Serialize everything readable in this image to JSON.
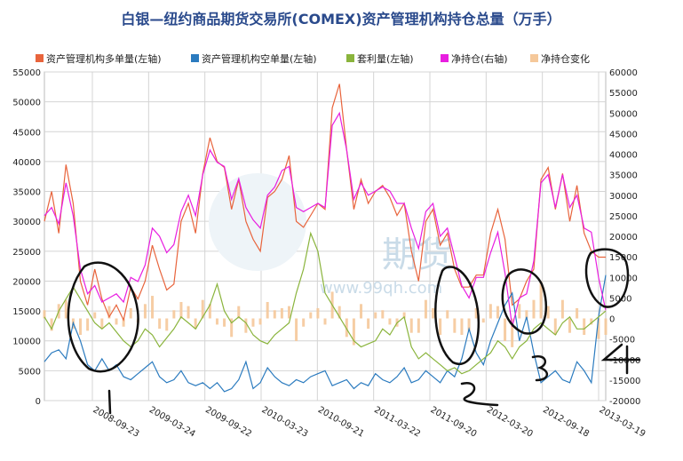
{
  "chart_data": {
    "type": "line",
    "title": "白银—纽约商品期货交易所(COMEX)资产管理机构持仓总量（万手）",
    "legend_position": "top",
    "grid": true,
    "left_axis": {
      "ylim": [
        0,
        55000
      ],
      "ticks": [
        "55000",
        "50000",
        "45000",
        "40000",
        "35000",
        "30000",
        "25000",
        "20000",
        "15000",
        "10000",
        "5000",
        "0"
      ]
    },
    "right_axis": {
      "ylim": [
        -20000,
        60000
      ],
      "ticks": [
        "60000",
        "55000",
        "50000",
        "45000",
        "40000",
        "35000",
        "30000",
        "25000",
        "20000",
        "15000",
        "10000",
        "5000",
        "0",
        "-5000",
        "-10000",
        "-15000",
        "-20000"
      ]
    },
    "x_ticks": [
      "2008-09-23",
      "2009-03-24",
      "2009-09-22",
      "2010-03-23",
      "2010-09-21",
      "2011-03-22",
      "2011-09-20",
      "2012-03-20",
      "2012-09-18",
      "2013-03-19"
    ],
    "series": [
      {
        "name": "资产管理机构多单量(左轴)",
        "axis": "left",
        "color": "#e8643c",
        "values": [
          30000,
          35000,
          28000,
          39500,
          33000,
          20000,
          16000,
          22000,
          17000,
          14000,
          16000,
          13500,
          19000,
          17000,
          20000,
          26000,
          22000,
          18500,
          19500,
          30000,
          33000,
          28000,
          38000,
          44000,
          40000,
          39000,
          32000,
          37000,
          30000,
          27000,
          25000,
          34000,
          35000,
          37000,
          41000,
          30000,
          29000,
          31000,
          33000,
          32000,
          49000,
          53000,
          42000,
          32000,
          37000,
          33000,
          35000,
          36000,
          34000,
          31000,
          33000,
          25000,
          20000,
          30000,
          32000,
          26000,
          28000,
          22000,
          19000,
          19000,
          21000,
          21000,
          28000,
          32000,
          27000,
          16000,
          17000,
          20000,
          22000,
          37000,
          39000,
          32000,
          38000,
          30000,
          36000,
          28000,
          25000,
          24000,
          24000
        ]
      },
      {
        "name": "资产管理机构空单量(左轴)",
        "axis": "left",
        "color": "#2b7bbf",
        "values": [
          6500,
          8000,
          8500,
          7000,
          13000,
          10000,
          6000,
          5000,
          7000,
          5000,
          6000,
          4000,
          3500,
          4500,
          5500,
          6500,
          4000,
          3000,
          3500,
          5000,
          3000,
          2500,
          3000,
          2000,
          3000,
          1500,
          2000,
          3500,
          6500,
          2000,
          3000,
          5500,
          4000,
          3000,
          2500,
          3500,
          3000,
          4000,
          4500,
          5000,
          2500,
          3000,
          3500,
          2000,
          3000,
          2500,
          4500,
          3500,
          3000,
          4000,
          5500,
          3000,
          3500,
          5000,
          4000,
          3000,
          5000,
          4000,
          7000,
          12000,
          8000,
          6000,
          10000,
          13000,
          16000,
          18000,
          10000,
          14000,
          8000,
          3000,
          4000,
          5000,
          3500,
          3000,
          6500,
          5000,
          3000,
          14000,
          21000
        ]
      },
      {
        "name": "套利量(左轴)",
        "axis": "left",
        "color": "#8ab43c",
        "values": [
          14000,
          12000,
          15000,
          17000,
          19000,
          17000,
          15000,
          13000,
          12000,
          13000,
          11500,
          10000,
          9000,
          10000,
          12000,
          11000,
          9000,
          10500,
          12000,
          14000,
          13000,
          12000,
          14000,
          16000,
          19500,
          15000,
          13000,
          14000,
          13000,
          11000,
          10000,
          9500,
          11000,
          12000,
          13000,
          18000,
          22000,
          28000,
          25000,
          18000,
          16000,
          14000,
          12000,
          10000,
          9000,
          9500,
          10000,
          12000,
          11000,
          13000,
          14000,
          9000,
          7000,
          8000,
          7000,
          6000,
          5000,
          5500,
          4500,
          5000,
          6000,
          7000,
          8000,
          10000,
          9000,
          7000,
          9000,
          10000,
          12000,
          13000,
          12000,
          11000,
          13000,
          14000,
          12000,
          12000,
          13000,
          14000,
          15000
        ]
      },
      {
        "name": "净持仓(右轴)",
        "axis": "right",
        "color": "#e81ee0",
        "values": [
          25000,
          27000,
          23000,
          33000,
          25000,
          12000,
          6000,
          8000,
          4000,
          5000,
          6000,
          4000,
          10000,
          9000,
          13000,
          22000,
          20000,
          16000,
          18000,
          26000,
          30000,
          25000,
          35000,
          41000,
          38000,
          37000,
          29000,
          34000,
          27000,
          24000,
          22000,
          30000,
          32000,
          36000,
          37000,
          27000,
          26000,
          27000,
          28000,
          27000,
          47000,
          50000,
          41000,
          29000,
          33000,
          30000,
          31000,
          32000,
          31000,
          28000,
          28000,
          22000,
          17000,
          26000,
          28000,
          20000,
          22000,
          15000,
          8000,
          5000,
          10000,
          10000,
          16000,
          21000,
          11000,
          -2000,
          5000,
          6000,
          14000,
          33000,
          35000,
          27000,
          35000,
          27000,
          30000,
          22000,
          21000,
          10000,
          2000
        ]
      },
      {
        "name": "净持仓变化",
        "axis": "right",
        "color": "#f5c89a",
        "type": "bar",
        "values": [
          2000,
          -3000,
          3500,
          4500,
          -2500,
          -4000,
          -3000,
          1500,
          -2500,
          3000,
          -1500,
          -2000,
          2500,
          -1000,
          3500,
          5500,
          -2500,
          -3000,
          2000,
          4000,
          3000,
          -2500,
          4500,
          3500,
          -1500,
          -2000,
          -4500,
          3000,
          -3500,
          -2000,
          -1500,
          4000,
          2000,
          2500,
          3000,
          -5500,
          -2000,
          1500,
          2500,
          -1500,
          6500,
          3000,
          -4500,
          -6500,
          3500,
          -2500,
          1500,
          2000,
          -1500,
          -2000,
          1500,
          -3500,
          -3500,
          4500,
          2500,
          -4000,
          2000,
          -3500,
          -4000,
          -3000,
          2500,
          -1000,
          3500,
          3000,
          -5500,
          -7000,
          3500,
          2000,
          4500,
          9000,
          3000,
          -4000,
          4500,
          -3500,
          2500,
          -4000,
          -1500,
          -5000,
          -4000
        ]
      }
    ],
    "watermark": {
      "brand": "期货",
      "url": "www.99qh.com"
    }
  },
  "annotations": [
    "1",
    "2",
    "3",
    "4"
  ]
}
